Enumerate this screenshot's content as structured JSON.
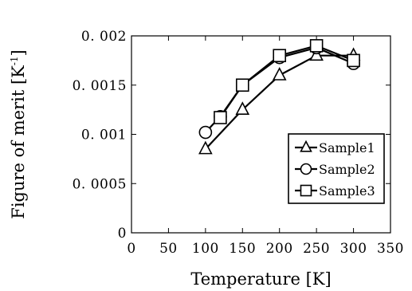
{
  "chart_data": {
    "type": "line",
    "title": "",
    "xlabel": "Temperature [K]",
    "ylabel": "Figure of merit [K",
    "ylabel_superscript": "-1",
    "ylabel_close": "]",
    "xlim": [
      0,
      350
    ],
    "ylim": [
      0,
      0.002
    ],
    "xticks": [
      0,
      50,
      100,
      150,
      200,
      250,
      300,
      350
    ],
    "xtick_labels": [
      "0",
      "50",
      "100",
      "150",
      "200",
      "250",
      "300",
      "350"
    ],
    "yticks": [
      0,
      0.0005,
      0.001,
      0.0015,
      0.002
    ],
    "ytick_labels": [
      "0",
      "0. 0005",
      "0. 001",
      "0. 0015",
      "0. 002"
    ],
    "grid": false,
    "legend_position": "bottom-right",
    "series": [
      {
        "name": "Sample1",
        "marker": "triangle",
        "x": [
          100,
          150,
          200,
          250,
          300
        ],
        "y": [
          0.00085,
          0.00125,
          0.0016,
          0.0018,
          0.0018
        ]
      },
      {
        "name": "Sample2",
        "marker": "circle",
        "x": [
          100,
          120,
          150,
          200,
          250,
          300
        ],
        "y": [
          0.00102,
          0.00118,
          0.0015,
          0.00178,
          0.00188,
          0.00172
        ]
      },
      {
        "name": "Sample3",
        "marker": "square",
        "x": [
          120,
          150,
          200,
          250,
          300
        ],
        "y": [
          0.00117,
          0.0015,
          0.0018,
          0.0019,
          0.00175
        ]
      }
    ]
  }
}
